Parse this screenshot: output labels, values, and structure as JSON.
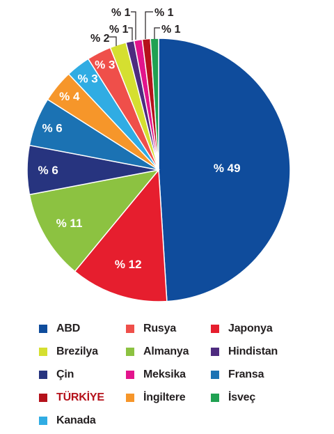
{
  "chart_data": {
    "type": "pie",
    "title": "",
    "slices": [
      {
        "label": "ABD",
        "value": 49,
        "value_label": "% 49",
        "color": "#0f4c9c"
      },
      {
        "label": "Japonya",
        "value": 12,
        "value_label": "% 12",
        "color": "#e61e2e"
      },
      {
        "label": "Almanya",
        "value": 11,
        "value_label": "% 11",
        "color": "#8cc241"
      },
      {
        "label": "Çin",
        "value": 6,
        "value_label": "% 6",
        "color": "#27347f"
      },
      {
        "label": "Fransa",
        "value": 6,
        "value_label": "% 6",
        "color": "#1b72b3"
      },
      {
        "label": "İngiltere",
        "value": 4,
        "value_label": "% 4",
        "color": "#f6962a"
      },
      {
        "label": "Kanada",
        "value": 3,
        "value_label": "% 3",
        "color": "#30ace3"
      },
      {
        "label": "Rusya",
        "value": 3,
        "value_label": "% 3",
        "color": "#ef4f4a"
      },
      {
        "label": "Brezilya",
        "value": 2,
        "value_label": "% 2",
        "color": "#d5df30"
      },
      {
        "label": "Hindistan",
        "value": 1,
        "value_label": "% 1",
        "color": "#4e2b7f"
      },
      {
        "label": "Meksika",
        "value": 1,
        "value_label": "% 1",
        "color": "#e3148c"
      },
      {
        "label": "TÜRKİYE",
        "value": 1,
        "value_label": "% 1",
        "color": "#b5121b"
      },
      {
        "label": "İsveç",
        "value": 1,
        "value_label": "% 1",
        "color": "#20a152"
      }
    ],
    "legend": {
      "placement": "bottom",
      "columns": 3,
      "items": [
        {
          "label": "ABD",
          "color": "#0f4c9c",
          "text_color": "#231f20"
        },
        {
          "label": "Rusya",
          "color": "#ef4f4a",
          "text_color": "#231f20"
        },
        {
          "label": "Japonya",
          "color": "#e61e2e",
          "text_color": "#231f20"
        },
        {
          "label": "Brezilya",
          "color": "#d5df30",
          "text_color": "#231f20"
        },
        {
          "label": "Almanya",
          "color": "#8cc241",
          "text_color": "#231f20"
        },
        {
          "label": "Hindistan",
          "color": "#4e2b7f",
          "text_color": "#231f20"
        },
        {
          "label": "Çin",
          "color": "#27347f",
          "text_color": "#231f20"
        },
        {
          "label": "Meksika",
          "color": "#e3148c",
          "text_color": "#231f20"
        },
        {
          "label": "Fransa",
          "color": "#1b72b3",
          "text_color": "#231f20"
        },
        {
          "label": "TÜRKİYE",
          "color": "#b5121b",
          "text_color": "#b5121b"
        },
        {
          "label": "İngiltere",
          "color": "#f6962a",
          "text_color": "#231f20"
        },
        {
          "label": "İsveç",
          "color": "#20a152",
          "text_color": "#231f20"
        },
        {
          "label": "Kanada",
          "color": "#30ace3",
          "text_color": "#231f20"
        }
      ]
    }
  }
}
